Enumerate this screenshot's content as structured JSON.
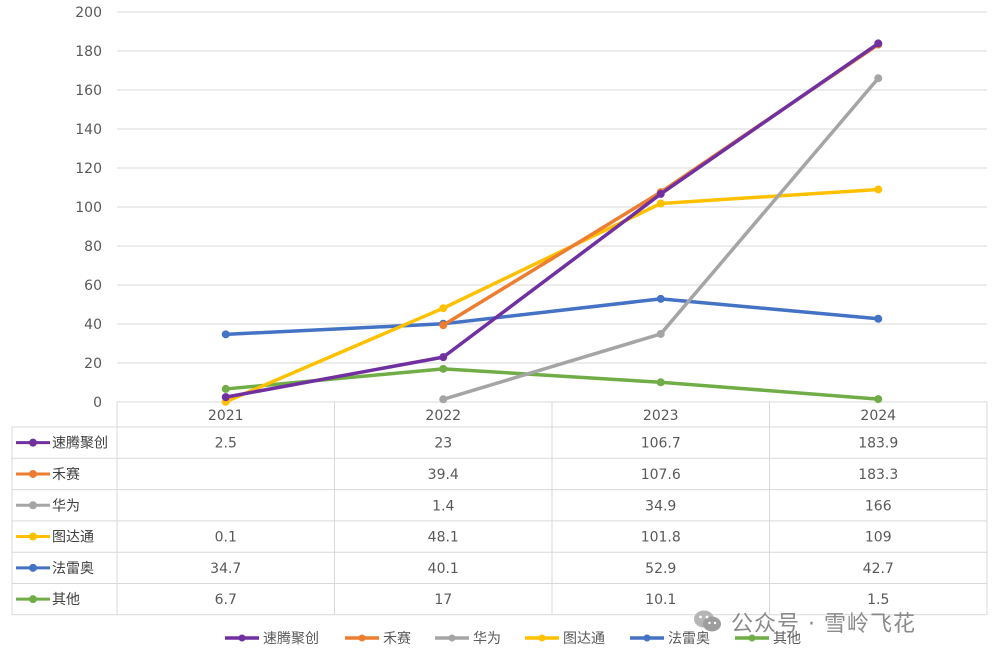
{
  "chart_data": {
    "type": "line",
    "categories": [
      "2021",
      "2022",
      "2023",
      "2024"
    ],
    "ylim": [
      0,
      200
    ],
    "yticks": [
      0,
      20,
      40,
      60,
      80,
      100,
      120,
      140,
      160,
      180,
      200
    ],
    "grid": true,
    "legend": "bottom",
    "data_table": true,
    "series": [
      {
        "name": "速腾聚创",
        "color": "#7030A0",
        "values": [
          2.5,
          23,
          106.7,
          183.9
        ]
      },
      {
        "name": "禾赛",
        "color": "#ED7D31",
        "values": [
          null,
          39.4,
          107.6,
          183.3
        ]
      },
      {
        "name": "华为",
        "color": "#A5A5A5",
        "values": [
          null,
          1.4,
          34.9,
          166
        ]
      },
      {
        "name": "图达通",
        "color": "#FFC000",
        "values": [
          0.1,
          48.1,
          101.8,
          109
        ]
      },
      {
        "name": "法雷奥",
        "color": "#4472C4",
        "values": [
          34.7,
          40.1,
          52.9,
          42.7
        ]
      },
      {
        "name": "其他",
        "color": "#70AD47",
        "values": [
          6.7,
          17,
          10.1,
          1.5
        ]
      }
    ]
  },
  "watermark": {
    "text": "公众号 · 雪岭飞花",
    "icon": "wechat-icon"
  }
}
